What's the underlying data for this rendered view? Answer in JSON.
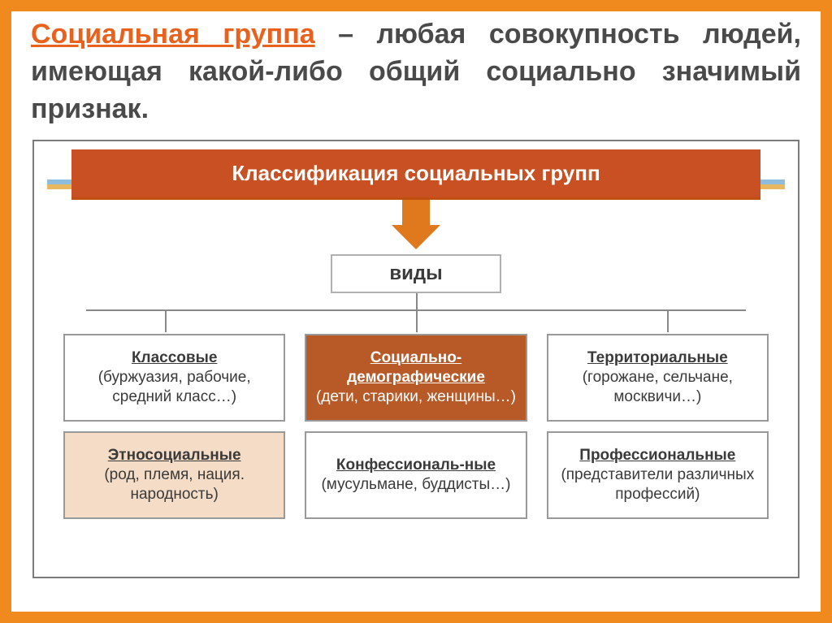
{
  "colors": {
    "outer_border": "#f08a1e",
    "term": "#e8621e",
    "title_bg": "#c85022",
    "blue_line": "#8fbde0",
    "gold_line": "#e8b860",
    "arrow": "#e0781e",
    "highlight_bg": "#b85a28",
    "peach_bg": "#f4dcc6"
  },
  "definition": {
    "term": "Социальная группа",
    "rest": "– любая совокупность людей, имеющая какой-либо общий социально значимый признак."
  },
  "title": "Классификация социальных групп",
  "types_label": "виды",
  "cells": [
    {
      "label": "Классовые",
      "sub": "(буржуазия, рабочие, средний класс…)",
      "style": "light"
    },
    {
      "label": "Социально-демографические",
      "sub": "(дети, старики, женщины…)",
      "style": "highlight"
    },
    {
      "label": "Территориальные",
      "sub": "(горожане, сельчане, москвичи…)",
      "style": "light"
    },
    {
      "label": "Этносоциальные",
      "sub": "(род, племя, нация. народность)",
      "style": "peach"
    },
    {
      "label": "Конфессиональ-ные",
      "sub": "(мусульмане, буддисты…)",
      "style": "light"
    },
    {
      "label": "Профессиональные",
      "sub": "(представители различных профессий)",
      "style": "light"
    }
  ]
}
